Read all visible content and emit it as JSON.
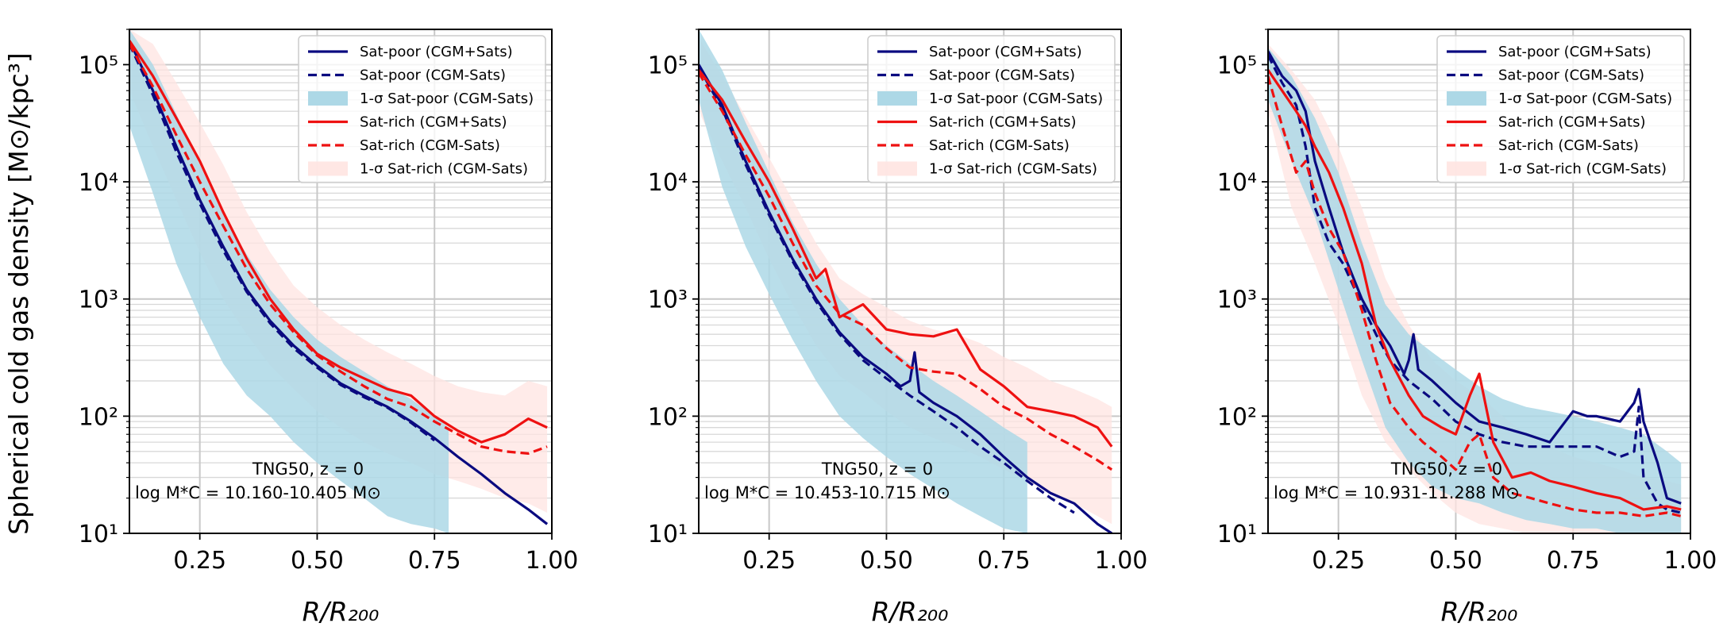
{
  "figure": {
    "ylabel": "Spherical cold gas density [M⊙/kpc³]",
    "xlabel": "R/R₂₀₀"
  },
  "chart_data": [
    {
      "type": "line",
      "panel": "left",
      "xlim": [
        0.1,
        1.0
      ],
      "ylim": [
        10,
        200000
      ],
      "yscale": "log",
      "xticks": [
        "0.25",
        "0.50",
        "0.75",
        "1.00"
      ],
      "yticks": [
        "10¹",
        "10²",
        "10³",
        "10⁴",
        "10⁵"
      ],
      "legend_position": "top-right",
      "annotation": {
        "line1": "TNG50, z = 0",
        "line2": "log M*C = 10.160-10.405 M⊙"
      },
      "series": [
        {
          "name": "Sat-poor (CGM+Sats)",
          "style": "solid",
          "color": "#0a0a80",
          "x": [
            0.1,
            0.15,
            0.2,
            0.25,
            0.3,
            0.35,
            0.4,
            0.45,
            0.5,
            0.55,
            0.6,
            0.65,
            0.7,
            0.75,
            0.8,
            0.85,
            0.9,
            0.95,
            0.99
          ],
          "y": [
            160000,
            60000,
            20000,
            7000,
            2800,
            1200,
            650,
            400,
            270,
            190,
            150,
            120,
            90,
            65,
            45,
            32,
            22,
            16,
            12
          ]
        },
        {
          "name": "Sat-poor (CGM-Sats)",
          "style": "dashed",
          "color": "#0a0a80",
          "x": [
            0.1,
            0.15,
            0.2,
            0.25,
            0.3,
            0.35,
            0.4,
            0.45,
            0.5,
            0.55,
            0.6,
            0.65,
            0.7,
            0.75
          ],
          "y": [
            150000,
            55000,
            18000,
            6500,
            2600,
            1150,
            620,
            380,
            260,
            185,
            145,
            118,
            88,
            62
          ]
        },
        {
          "name": "Sat-rich (CGM+Sats)",
          "style": "solid",
          "color": "#ee1111",
          "x": [
            0.1,
            0.15,
            0.2,
            0.25,
            0.3,
            0.35,
            0.4,
            0.45,
            0.5,
            0.55,
            0.6,
            0.65,
            0.7,
            0.75,
            0.8,
            0.85,
            0.9,
            0.95,
            0.99
          ],
          "y": [
            160000,
            80000,
            35000,
            15000,
            5500,
            2200,
            1000,
            550,
            340,
            260,
            210,
            170,
            150,
            100,
            75,
            60,
            70,
            95,
            80
          ]
        },
        {
          "name": "Sat-rich (CGM-Sats)",
          "style": "dashed",
          "color": "#ee1111",
          "x": [
            0.1,
            0.15,
            0.2,
            0.25,
            0.3,
            0.35,
            0.4,
            0.45,
            0.5,
            0.55,
            0.6,
            0.65,
            0.7,
            0.75,
            0.8,
            0.85,
            0.9,
            0.95,
            0.99
          ],
          "y": [
            150000,
            65000,
            25000,
            10000,
            4200,
            1800,
            900,
            520,
            330,
            240,
            180,
            140,
            120,
            90,
            70,
            55,
            50,
            48,
            55
          ]
        }
      ],
      "bands": [
        {
          "name": "1-σ Sat-poor (CGM-Sats)",
          "color": "#add8e6",
          "x": [
            0.1,
            0.15,
            0.2,
            0.25,
            0.3,
            0.35,
            0.4,
            0.45,
            0.5,
            0.55,
            0.6,
            0.65,
            0.7,
            0.75,
            0.78
          ],
          "lower": [
            30000,
            8000,
            2000,
            700,
            280,
            150,
            100,
            60,
            40,
            28,
            20,
            14,
            12,
            11,
            10
          ],
          "upper": [
            200000,
            100000,
            38000,
            14000,
            5200,
            2400,
            1200,
            700,
            450,
            320,
            240,
            180,
            140,
            100,
            80
          ]
        },
        {
          "name": "1-σ Sat-rich (CGM-Sats)",
          "color": "#ffe4e1",
          "x": [
            0.1,
            0.15,
            0.2,
            0.25,
            0.3,
            0.35,
            0.4,
            0.45,
            0.5,
            0.55,
            0.6,
            0.65,
            0.7,
            0.75,
            0.8,
            0.85,
            0.9,
            0.95,
            0.99
          ],
          "lower": [
            60000,
            20000,
            7000,
            2500,
            1000,
            500,
            270,
            170,
            110,
            80,
            60,
            48,
            40,
            32,
            28,
            24,
            20,
            18,
            15
          ],
          "upper": [
            200000,
            150000,
            70000,
            32000,
            14000,
            5500,
            2500,
            1300,
            850,
            600,
            450,
            350,
            280,
            220,
            180,
            160,
            150,
            200,
            180
          ]
        }
      ]
    },
    {
      "type": "line",
      "panel": "middle",
      "xlim": [
        0.1,
        1.0
      ],
      "ylim": [
        10,
        200000
      ],
      "yscale": "log",
      "xticks": [
        "0.25",
        "0.50",
        "0.75",
        "1.00"
      ],
      "yticks": [
        "10¹",
        "10²",
        "10³",
        "10⁴",
        "10⁵"
      ],
      "legend_position": "top-right",
      "annotation": {
        "line1": "TNG50, z = 0",
        "line2": "log M*C = 10.453-10.715 M⊙"
      },
      "series": [
        {
          "name": "Sat-poor (CGM+Sats)",
          "style": "solid",
          "color": "#0a0a80",
          "x": [
            0.1,
            0.15,
            0.2,
            0.25,
            0.3,
            0.35,
            0.4,
            0.45,
            0.5,
            0.53,
            0.55,
            0.56,
            0.57,
            0.6,
            0.65,
            0.7,
            0.75,
            0.8,
            0.85,
            0.9,
            0.95,
            0.98
          ],
          "y": [
            100000,
            45000,
            15000,
            5500,
            2200,
            1000,
            520,
            320,
            230,
            180,
            200,
            350,
            160,
            130,
            100,
            70,
            45,
            30,
            22,
            18,
            12,
            10
          ]
        },
        {
          "name": "Sat-poor (CGM-Sats)",
          "style": "dashed",
          "color": "#0a0a80",
          "x": [
            0.1,
            0.15,
            0.2,
            0.25,
            0.3,
            0.35,
            0.4,
            0.45,
            0.5,
            0.55,
            0.6,
            0.65,
            0.7,
            0.75,
            0.8,
            0.85,
            0.9
          ],
          "y": [
            95000,
            42000,
            14000,
            5200,
            2100,
            950,
            500,
            300,
            210,
            150,
            110,
            80,
            55,
            40,
            28,
            20,
            15
          ]
        },
        {
          "name": "Sat-rich (CGM+Sats)",
          "style": "solid",
          "color": "#ee1111",
          "x": [
            0.1,
            0.15,
            0.2,
            0.25,
            0.3,
            0.35,
            0.37,
            0.4,
            0.45,
            0.5,
            0.55,
            0.6,
            0.65,
            0.7,
            0.75,
            0.8,
            0.85,
            0.9,
            0.95,
            0.98
          ],
          "y": [
            90000,
            50000,
            22000,
            10000,
            4000,
            1500,
            1800,
            700,
            900,
            550,
            500,
            480,
            550,
            250,
            180,
            120,
            110,
            100,
            80,
            55
          ]
        },
        {
          "name": "Sat-rich (CGM-Sats)",
          "style": "dashed",
          "color": "#ee1111",
          "x": [
            0.1,
            0.15,
            0.2,
            0.25,
            0.3,
            0.35,
            0.4,
            0.45,
            0.5,
            0.55,
            0.6,
            0.65,
            0.7,
            0.75,
            0.8,
            0.85,
            0.9,
            0.95,
            0.98
          ],
          "y": [
            85000,
            40000,
            17000,
            7500,
            3000,
            1300,
            750,
            600,
            380,
            260,
            240,
            230,
            170,
            120,
            95,
            70,
            55,
            42,
            35
          ]
        }
      ],
      "bands": [
        {
          "name": "1-σ Sat-poor (CGM-Sats)",
          "color": "#add8e6",
          "x": [
            0.1,
            0.15,
            0.2,
            0.25,
            0.3,
            0.35,
            0.4,
            0.45,
            0.5,
            0.55,
            0.6,
            0.65,
            0.7,
            0.75,
            0.8
          ],
          "lower": [
            50000,
            9000,
            2800,
            1100,
            450,
            200,
            100,
            65,
            45,
            32,
            24,
            18,
            14,
            11,
            10
          ],
          "upper": [
            200000,
            90000,
            32000,
            12000,
            4500,
            2000,
            1000,
            600,
            400,
            280,
            200,
            150,
            110,
            80,
            60
          ]
        },
        {
          "name": "1-σ Sat-rich (CGM-Sats)",
          "color": "#ffe4e1",
          "x": [
            0.1,
            0.15,
            0.2,
            0.25,
            0.3,
            0.35,
            0.4,
            0.45,
            0.5,
            0.55,
            0.6,
            0.65,
            0.7,
            0.75,
            0.8,
            0.85,
            0.9,
            0.95,
            0.98
          ],
          "lower": [
            40000,
            15000,
            6000,
            2200,
            900,
            400,
            220,
            160,
            110,
            80,
            65,
            55,
            45,
            35,
            28,
            22,
            18,
            14,
            12
          ],
          "upper": [
            170000,
            80000,
            36000,
            16000,
            7000,
            3000,
            1500,
            1100,
            850,
            650,
            550,
            500,
            420,
            320,
            260,
            200,
            170,
            140,
            120
          ]
        }
      ]
    },
    {
      "type": "line",
      "panel": "right",
      "xlim": [
        0.1,
        1.0
      ],
      "ylim": [
        10,
        200000
      ],
      "yscale": "log",
      "xticks": [
        "0.25",
        "0.50",
        "0.75",
        "1.00"
      ],
      "yticks": [
        "10¹",
        "10²",
        "10³",
        "10⁴",
        "10⁵"
      ],
      "legend_position": "top-right",
      "annotation": {
        "line1": "TNG50, z = 0",
        "line2": "log M*C = 10.931-11.288 M⊙"
      },
      "series": [
        {
          "name": "Sat-poor (CGM+Sats)",
          "style": "solid",
          "color": "#0a0a80",
          "x": [
            0.1,
            0.13,
            0.16,
            0.18,
            0.2,
            0.23,
            0.26,
            0.3,
            0.33,
            0.36,
            0.39,
            0.4,
            0.41,
            0.42,
            0.45,
            0.5,
            0.55,
            0.6,
            0.65,
            0.7,
            0.75,
            0.78,
            0.8,
            0.85,
            0.88,
            0.89,
            0.9,
            0.93,
            0.95,
            0.98
          ],
          "y": [
            130000,
            80000,
            60000,
            40000,
            15000,
            6000,
            2500,
            1000,
            600,
            400,
            230,
            300,
            500,
            250,
            200,
            130,
            90,
            80,
            70,
            60,
            110,
            100,
            100,
            90,
            130,
            170,
            90,
            40,
            20,
            18
          ]
        },
        {
          "name": "Sat-poor (CGM-Sats)",
          "style": "dashed",
          "color": "#0a0a80",
          "x": [
            0.1,
            0.13,
            0.16,
            0.18,
            0.2,
            0.23,
            0.26,
            0.3,
            0.33,
            0.36,
            0.4,
            0.45,
            0.5,
            0.55,
            0.6,
            0.65,
            0.7,
            0.75,
            0.8,
            0.85,
            0.88,
            0.89,
            0.9,
            0.93,
            0.95,
            0.98
          ],
          "y": [
            120000,
            70000,
            45000,
            20000,
            6000,
            3000,
            2000,
            900,
            500,
            300,
            200,
            140,
            90,
            70,
            60,
            55,
            55,
            55,
            55,
            45,
            50,
            120,
            30,
            18,
            16,
            15
          ]
        },
        {
          "name": "Sat-rich (CGM+Sats)",
          "style": "solid",
          "color": "#ee1111",
          "x": [
            0.1,
            0.13,
            0.16,
            0.18,
            0.2,
            0.23,
            0.26,
            0.3,
            0.33,
            0.36,
            0.4,
            0.43,
            0.47,
            0.5,
            0.53,
            0.55,
            0.58,
            0.62,
            0.66,
            0.7,
            0.75,
            0.8,
            0.85,
            0.9,
            0.95,
            0.98
          ],
          "y": [
            90000,
            60000,
            40000,
            30000,
            20000,
            12000,
            6000,
            2000,
            600,
            300,
            150,
            100,
            80,
            70,
            150,
            230,
            60,
            30,
            33,
            28,
            25,
            22,
            20,
            16,
            17,
            16
          ]
        },
        {
          "name": "Sat-rich (CGM-Sats)",
          "style": "dashed",
          "color": "#ee1111",
          "x": [
            0.1,
            0.13,
            0.16,
            0.18,
            0.2,
            0.23,
            0.26,
            0.3,
            0.33,
            0.36,
            0.4,
            0.43,
            0.47,
            0.5,
            0.53,
            0.55,
            0.58,
            0.62,
            0.66,
            0.7,
            0.75,
            0.8,
            0.85,
            0.9,
            0.95,
            0.98
          ],
          "y": [
            80000,
            30000,
            12000,
            15000,
            8000,
            4000,
            2500,
            800,
            300,
            130,
            80,
            60,
            45,
            35,
            60,
            70,
            30,
            22,
            20,
            18,
            16,
            15,
            15,
            14,
            15,
            14
          ]
        }
      ],
      "bands": [
        {
          "name": "1-σ Sat-poor (CGM-Sats)",
          "color": "#add8e6",
          "x": [
            0.1,
            0.15,
            0.2,
            0.25,
            0.3,
            0.35,
            0.4,
            0.45,
            0.5,
            0.55,
            0.6,
            0.65,
            0.7,
            0.75,
            0.8,
            0.85,
            0.9,
            0.95,
            0.98
          ],
          "lower": [
            50000,
            15000,
            5000,
            1200,
            300,
            80,
            40,
            25,
            20,
            18,
            15,
            13,
            12,
            11,
            11,
            10,
            10,
            10,
            10
          ],
          "upper": [
            140000,
            80000,
            35000,
            12000,
            3000,
            900,
            500,
            350,
            250,
            180,
            140,
            120,
            110,
            100,
            90,
            80,
            70,
            50,
            40
          ]
        },
        {
          "name": "1-σ Sat-rich (CGM-Sats)",
          "color": "#ffe4e1",
          "x": [
            0.1,
            0.15,
            0.2,
            0.25,
            0.3,
            0.35,
            0.4,
            0.45,
            0.5,
            0.55,
            0.6,
            0.65,
            0.7,
            0.75,
            0.8,
            0.85,
            0.9,
            0.95,
            0.98
          ],
          "lower": [
            40000,
            6000,
            2000,
            600,
            150,
            60,
            35,
            22,
            15,
            12,
            11,
            10,
            10,
            10,
            10,
            10,
            10,
            10,
            10
          ],
          "upper": [
            150000,
            90000,
            50000,
            20000,
            6000,
            1500,
            600,
            300,
            200,
            150,
            100,
            70,
            55,
            45,
            40,
            35,
            30,
            28,
            26
          ]
        }
      ]
    }
  ]
}
